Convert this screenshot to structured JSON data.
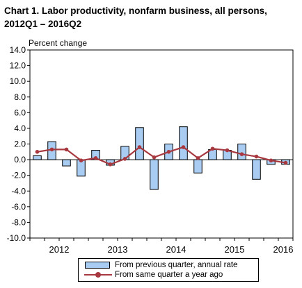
{
  "chart_data": {
    "type": "bar",
    "title_line1": "Chart  1. Labor productivity, nonfarm business, all persons,",
    "title_line2": "2012Q1 – 2016Q2",
    "ylabel": "Percent change",
    "xlabel": "",
    "ylim": [
      -10,
      14
    ],
    "yticks": [
      "14.0",
      "12.0",
      "10.0",
      "8.0",
      "6.0",
      "4.0",
      "2.0",
      "0.0",
      "-2.0",
      "-4.0",
      "-6.0",
      "-8.0",
      "-10.0"
    ],
    "ytick_values": [
      14,
      12,
      10,
      8,
      6,
      4,
      2,
      0,
      -2,
      -4,
      -6,
      -8,
      -10
    ],
    "year_labels": [
      "2012",
      "2013",
      "2014",
      "2015",
      "2016"
    ],
    "categories": [
      "2012Q1",
      "2012Q2",
      "2012Q3",
      "2012Q4",
      "2013Q1",
      "2013Q2",
      "2013Q3",
      "2013Q4",
      "2014Q1",
      "2014Q2",
      "2014Q3",
      "2014Q4",
      "2015Q1",
      "2015Q2",
      "2015Q3",
      "2015Q4",
      "2016Q1",
      "2016Q2"
    ],
    "grid": false,
    "legend_position": "bottom",
    "series": [
      {
        "name": "From previous quarter, annual rate",
        "kind": "bar",
        "color": "#a9cdf2",
        "values": [
          0.5,
          2.3,
          -0.8,
          -2.1,
          1.2,
          -0.7,
          1.7,
          4.1,
          -3.8,
          2.0,
          4.2,
          -1.7,
          1.3,
          1.2,
          2.0,
          -2.5,
          -0.6,
          -0.6
        ]
      },
      {
        "name": "From same quarter a year ago",
        "kind": "line",
        "color": "#a8383f",
        "values": [
          1.0,
          1.3,
          1.3,
          -0.1,
          0.2,
          -0.6,
          0.1,
          1.6,
          0.3,
          1.0,
          1.6,
          0.2,
          1.4,
          1.2,
          0.7,
          0.4,
          -0.1,
          -0.4
        ]
      }
    ]
  }
}
